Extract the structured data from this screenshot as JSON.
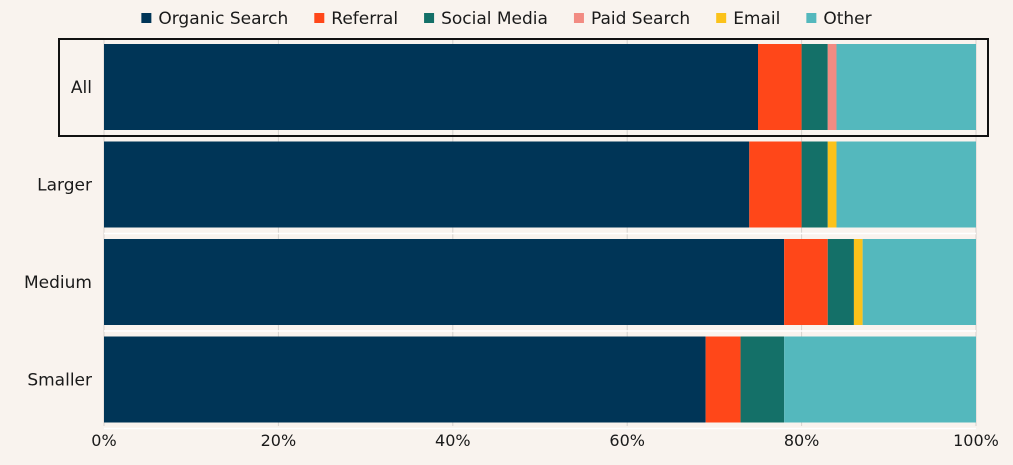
{
  "chart_data": {
    "type": "bar",
    "orientation": "horizontal",
    "stacked": true,
    "categories": [
      "All",
      "Larger",
      "Medium",
      "Smaller"
    ],
    "series": [
      {
        "name": "Organic Search",
        "color": "#003557",
        "values": [
          75,
          74,
          78,
          69
        ]
      },
      {
        "name": "Referral",
        "color": "#ff4719",
        "values": [
          5,
          6,
          5,
          4
        ]
      },
      {
        "name": "Social Media",
        "color": "#147068",
        "values": [
          3,
          3,
          3,
          5
        ]
      },
      {
        "name": "Paid Search",
        "color": "#f28b82",
        "values": [
          1,
          0,
          0,
          0
        ]
      },
      {
        "name": "Email",
        "color": "#fbc21a",
        "values": [
          0,
          1,
          1,
          0
        ]
      },
      {
        "name": "Other",
        "color": "#54b8bd",
        "values": [
          16,
          16,
          13,
          22
        ]
      }
    ],
    "xlim": [
      0,
      100
    ],
    "x_ticks": [
      "0%",
      "20%",
      "40%",
      "60%",
      "80%",
      "100%"
    ],
    "grid": true,
    "legend": "top",
    "highlighted_category": "All",
    "title": "",
    "xlabel": "",
    "ylabel": ""
  }
}
